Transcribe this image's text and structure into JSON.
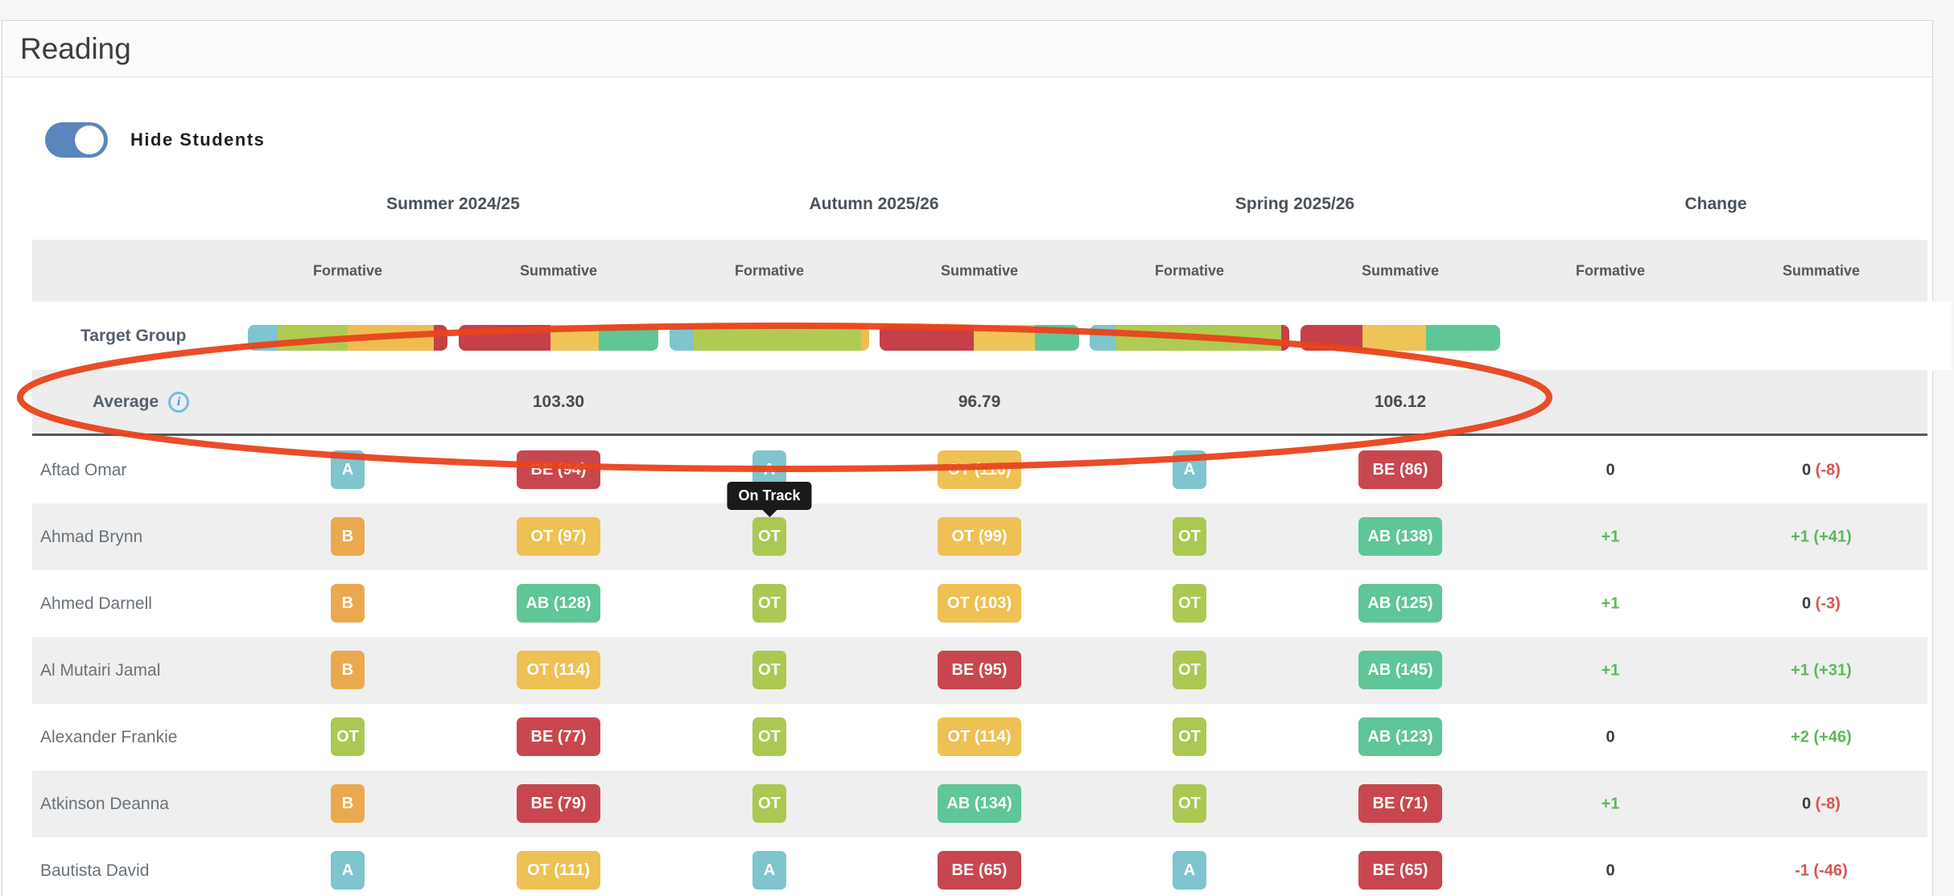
{
  "panel": {
    "title": "Reading"
  },
  "controls": {
    "hide_students_label": "Hide Students",
    "toggle_state": "on",
    "toggle_color": "#5a86bd"
  },
  "tooltip": {
    "text": "On Track"
  },
  "icons": {
    "info_glyph": "i"
  },
  "legend_colors": {
    "A": "#7ec5ce",
    "B": "#eaa94e",
    "OT_formative": "#abc852",
    "OT_summative": "#eec154",
    "BE": "#c8474f",
    "AB": "#5fc697"
  },
  "annotation": {
    "shape": "ellipse",
    "color": "#e8431c"
  },
  "table": {
    "term_headers": [
      "Summer 2024/25",
      "Autumn 2025/26",
      "Spring 2025/26",
      "Change"
    ],
    "subheaders": [
      "Formative",
      "Summative",
      "Formative",
      "Summative",
      "Formative",
      "Summative",
      "Formative",
      "Summative"
    ],
    "target_group": {
      "label": "Target Group",
      "bars": [
        {
          "term": "Summer 2024/25",
          "column": "Formative",
          "segments": [
            {
              "category": "A",
              "color": "#7ec5ce",
              "pct": 15
            },
            {
              "category": "OT",
              "color": "#b0cb52",
              "pct": 35
            },
            {
              "category": "B",
              "color": "#edbd50",
              "pct": 43
            },
            {
              "category": "BE",
              "color": "#c64049",
              "pct": 7
            }
          ]
        },
        {
          "term": "Summer 2024/25",
          "column": "Summative",
          "segments": [
            {
              "category": "BE",
              "color": "#c64049",
              "pct": 46
            },
            {
              "category": "OT",
              "color": "#eec457",
              "pct": 24
            },
            {
              "category": "AB",
              "color": "#5fc697",
              "pct": 30
            }
          ]
        },
        {
          "term": "Autumn 2025/26",
          "column": "Formative",
          "segments": [
            {
              "category": "A",
              "color": "#7ec5ce",
              "pct": 12
            },
            {
              "category": "OT",
              "color": "#b0cb52",
              "pct": 84
            },
            {
              "category": "B",
              "color": "#edbd50",
              "pct": 4
            }
          ]
        },
        {
          "term": "Autumn 2025/26",
          "column": "Summative",
          "segments": [
            {
              "category": "BE",
              "color": "#c64049",
              "pct": 47
            },
            {
              "category": "OT",
              "color": "#eec457",
              "pct": 31
            },
            {
              "category": "AB",
              "color": "#5fc697",
              "pct": 22
            }
          ]
        },
        {
          "term": "Spring 2025/26",
          "column": "Formative",
          "segments": [
            {
              "category": "A",
              "color": "#7ec5ce",
              "pct": 13
            },
            {
              "category": "OT",
              "color": "#b0cb52",
              "pct": 83
            },
            {
              "category": "BE",
              "color": "#c64049",
              "pct": 4
            }
          ]
        },
        {
          "term": "Spring 2025/26",
          "column": "Summative",
          "segments": [
            {
              "category": "BE",
              "color": "#c64049",
              "pct": 31
            },
            {
              "category": "OT",
              "color": "#eec457",
              "pct": 32
            },
            {
              "category": "AB",
              "color": "#5fc697",
              "pct": 37
            }
          ]
        }
      ]
    },
    "average": {
      "label": "Average",
      "values": [
        "103.30",
        "96.79",
        "106.12"
      ]
    },
    "students": [
      {
        "name": "Aftad Omar",
        "badges": [
          {
            "label": "A",
            "type": "a"
          },
          {
            "label": "BE (94)",
            "type": "be"
          },
          {
            "label": "A",
            "type": "a"
          },
          {
            "label": "OT (110)",
            "type": "ots"
          },
          {
            "label": "A",
            "type": "a"
          },
          {
            "label": "BE (86)",
            "type": "be"
          }
        ],
        "change": {
          "formative": {
            "value": "0",
            "color": "dark"
          },
          "summative": {
            "value": "0",
            "color": "dark",
            "delta": "(-8)",
            "delta_color": "red"
          }
        }
      },
      {
        "name": "Ahmad Brynn",
        "badges": [
          {
            "label": "B",
            "type": "b"
          },
          {
            "label": "OT (97)",
            "type": "ots"
          },
          {
            "label": "OT",
            "type": "otf"
          },
          {
            "label": "OT (99)",
            "type": "ots"
          },
          {
            "label": "OT",
            "type": "otf"
          },
          {
            "label": "AB (138)",
            "type": "ab"
          }
        ],
        "change": {
          "formative": {
            "value": "+1",
            "color": "green"
          },
          "summative": {
            "value": "+1",
            "color": "green",
            "delta": "(+41)",
            "delta_color": "green"
          }
        }
      },
      {
        "name": "Ahmed Darnell",
        "badges": [
          {
            "label": "B",
            "type": "b"
          },
          {
            "label": "AB (128)",
            "type": "ab"
          },
          {
            "label": "OT",
            "type": "otf"
          },
          {
            "label": "OT (103)",
            "type": "ots"
          },
          {
            "label": "OT",
            "type": "otf"
          },
          {
            "label": "AB (125)",
            "type": "ab"
          }
        ],
        "change": {
          "formative": {
            "value": "+1",
            "color": "green"
          },
          "summative": {
            "value": "0",
            "color": "dark",
            "delta": "(-3)",
            "delta_color": "red"
          }
        }
      },
      {
        "name": "Al Mutairi Jamal",
        "badges": [
          {
            "label": "B",
            "type": "b"
          },
          {
            "label": "OT (114)",
            "type": "ots"
          },
          {
            "label": "OT",
            "type": "otf"
          },
          {
            "label": "BE (95)",
            "type": "be"
          },
          {
            "label": "OT",
            "type": "otf"
          },
          {
            "label": "AB (145)",
            "type": "ab"
          }
        ],
        "change": {
          "formative": {
            "value": "+1",
            "color": "green"
          },
          "summative": {
            "value": "+1",
            "color": "green",
            "delta": "(+31)",
            "delta_color": "green"
          }
        }
      },
      {
        "name": "Alexander Frankie",
        "badges": [
          {
            "label": "OT",
            "type": "otf"
          },
          {
            "label": "BE (77)",
            "type": "be"
          },
          {
            "label": "OT",
            "type": "otf"
          },
          {
            "label": "OT (114)",
            "type": "ots"
          },
          {
            "label": "OT",
            "type": "otf"
          },
          {
            "label": "AB (123)",
            "type": "ab"
          }
        ],
        "change": {
          "formative": {
            "value": "0",
            "color": "dark"
          },
          "summative": {
            "value": "+2",
            "color": "green",
            "delta": "(+46)",
            "delta_color": "green"
          }
        }
      },
      {
        "name": "Atkinson Deanna",
        "badges": [
          {
            "label": "B",
            "type": "b"
          },
          {
            "label": "BE (79)",
            "type": "be"
          },
          {
            "label": "OT",
            "type": "otf"
          },
          {
            "label": "AB (134)",
            "type": "ab"
          },
          {
            "label": "OT",
            "type": "otf"
          },
          {
            "label": "BE (71)",
            "type": "be"
          }
        ],
        "change": {
          "formative": {
            "value": "+1",
            "color": "green"
          },
          "summative": {
            "value": "0",
            "color": "dark",
            "delta": "(-8)",
            "delta_color": "red"
          }
        }
      },
      {
        "name": "Bautista David",
        "badges": [
          {
            "label": "A",
            "type": "a"
          },
          {
            "label": "OT (111)",
            "type": "ots"
          },
          {
            "label": "A",
            "type": "a"
          },
          {
            "label": "BE (65)",
            "type": "be"
          },
          {
            "label": "A",
            "type": "a"
          },
          {
            "label": "BE (65)",
            "type": "be"
          }
        ],
        "change": {
          "formative": {
            "value": "0",
            "color": "dark"
          },
          "summative": {
            "value": "-1",
            "color": "red",
            "delta": "(-46)",
            "delta_color": "red"
          }
        }
      }
    ]
  }
}
